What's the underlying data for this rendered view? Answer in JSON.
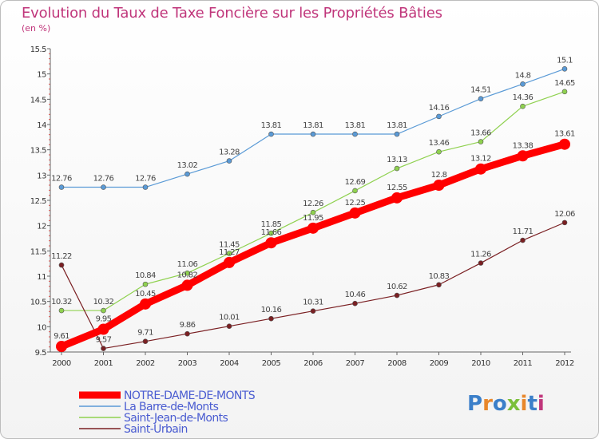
{
  "header": {
    "title": "Evolution du Taux de Taxe Foncière sur les Propriétés Bâties",
    "subtitle": "(en %)"
  },
  "logo": {
    "text": "Proxiti",
    "colors": [
      "#3b7fc9",
      "#e8872b",
      "#3b7fc9",
      "#7bbf3a",
      "#e8872b",
      "#3b7fc9",
      "#c0367b"
    ]
  },
  "chart_data": {
    "type": "line",
    "title": "Evolution du Taux de Taxe Foncière sur les Propriétés Bâties",
    "subtitle": "(en %)",
    "xlabel": "",
    "ylabel": "",
    "categories": [
      "2000",
      "2001",
      "2002",
      "2003",
      "2004",
      "2005",
      "2006",
      "2007",
      "2008",
      "2009",
      "2010",
      "2011",
      "2012"
    ],
    "ylim": [
      9.5,
      15.5
    ],
    "yticks": [
      "9.5",
      "10",
      "10.5",
      "11",
      "11.5",
      "12",
      "12.5",
      "13",
      "13.5",
      "14",
      "14.5",
      "15",
      "15.5"
    ],
    "grid": false,
    "legend_position": "bottom-left",
    "series": [
      {
        "name": "NOTRE-DAME-DE-MONTS",
        "color": "#ff0000",
        "label_color": "#4a5cd1",
        "emphasis": true,
        "values": [
          9.61,
          9.95,
          10.45,
          10.82,
          11.27,
          11.66,
          11.95,
          12.25,
          12.55,
          12.8,
          13.12,
          13.38,
          13.61
        ],
        "labels": [
          "9.61",
          "9.95",
          "10.45",
          "10.82",
          "11.27",
          "11.66",
          "11.95",
          "12.25",
          "12.55",
          "12.8",
          "13.12",
          "13.38",
          "13.61"
        ]
      },
      {
        "name": "La Barre-de-Monts",
        "color": "#5a9ad6",
        "label_color": "#4a5cd1",
        "emphasis": false,
        "values": [
          12.76,
          12.76,
          12.76,
          13.02,
          13.28,
          13.81,
          13.81,
          13.81,
          13.81,
          14.16,
          14.51,
          14.8,
          15.1
        ],
        "labels": [
          "12.76",
          "12.76",
          "12.76",
          "13.02",
          "13.28",
          "13.81",
          "13.81",
          "13.81",
          "13.81",
          "14.16",
          "14.51",
          "14.8",
          "15.1"
        ]
      },
      {
        "name": "Saint-Jean-de-Monts",
        "color": "#8fd14f",
        "label_color": "#4a5cd1",
        "emphasis": false,
        "values": [
          10.32,
          10.32,
          10.84,
          11.06,
          11.45,
          11.85,
          12.26,
          12.69,
          13.13,
          13.46,
          13.66,
          14.36,
          14.65
        ],
        "labels": [
          "10.32",
          "10.32",
          "10.84",
          "11.06",
          "11.45",
          "11.85",
          "12.26",
          "12.69",
          "13.13",
          "13.46",
          "13.66",
          "14.36",
          "14.65"
        ]
      },
      {
        "name": "Saint-Urbain",
        "color": "#7a1f22",
        "label_color": "#4a5cd1",
        "emphasis": false,
        "values": [
          11.22,
          9.57,
          9.71,
          9.86,
          10.01,
          10.16,
          10.31,
          10.46,
          10.62,
          10.83,
          11.26,
          11.71,
          12.06
        ],
        "labels": [
          "11.22",
          "9.57",
          "9.71",
          "9.86",
          "10.01",
          "10.16",
          "10.31",
          "10.46",
          "10.62",
          "10.83",
          "11.26",
          "11.71",
          "12.06"
        ]
      }
    ]
  }
}
